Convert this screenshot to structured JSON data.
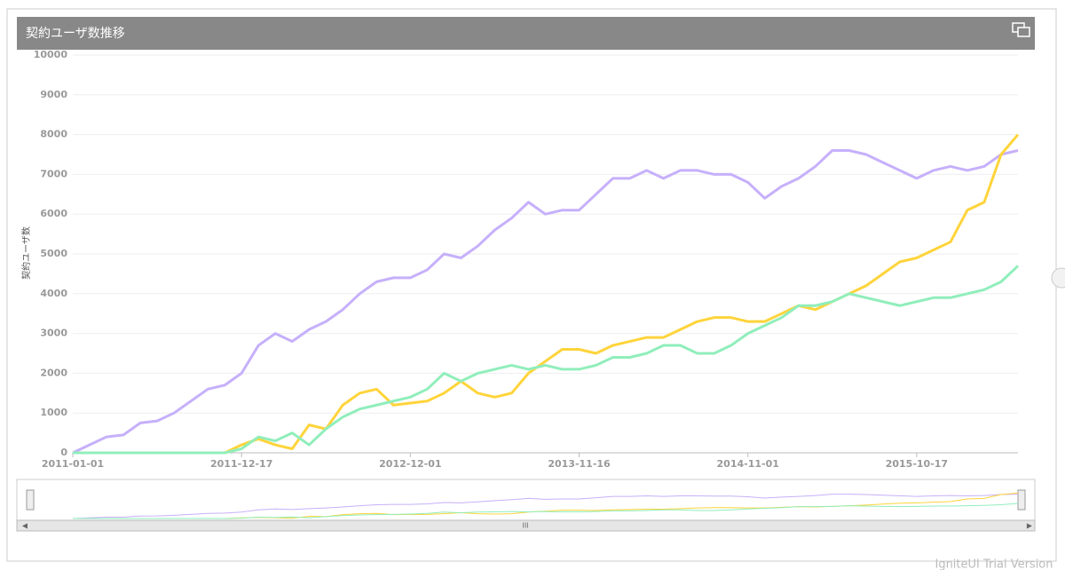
{
  "chart_data": {
    "type": "line",
    "title": "契約ユーザ数推移",
    "y_label": "契約ユーザ数",
    "footer": "IgniteUI Trial Version",
    "categories": [
      "2011-01-01",
      null,
      null,
      null,
      null,
      null,
      null,
      null,
      null,
      null,
      "2011-12-17",
      null,
      null,
      null,
      null,
      null,
      null,
      null,
      null,
      null,
      "2012-12-01",
      null,
      null,
      null,
      null,
      null,
      null,
      null,
      null,
      null,
      "2013-11-16",
      null,
      null,
      null,
      null,
      null,
      null,
      null,
      null,
      null,
      "2014-11-01",
      null,
      null,
      null,
      null,
      null,
      null,
      null,
      null,
      null,
      "2015-10-17",
      null,
      null,
      null,
      null,
      null,
      null
    ],
    "series": [
      {
        "color": "#c6b0fb",
        "values": [
          0,
          200,
          400,
          450,
          750,
          800,
          1000,
          1300,
          1600,
          1700,
          2000,
          2700,
          3000,
          2800,
          3100,
          3300,
          3600,
          4000,
          4300,
          4400,
          4400,
          4600,
          5000,
          4900,
          5200,
          5600,
          5900,
          6300,
          6000,
          6100,
          6100,
          6500,
          6900,
          6900,
          7100,
          6900,
          7100,
          7100,
          7000,
          7000,
          6800,
          6400,
          6700,
          6900,
          7200,
          7600,
          7600,
          7500,
          7300,
          7100,
          6900,
          7100,
          7200,
          7100,
          7200,
          7500,
          7600
        ]
      },
      {
        "color": "#ffd43b",
        "values": [
          0,
          0,
          0,
          0,
          0,
          0,
          0,
          0,
          0,
          0,
          200,
          350,
          200,
          100,
          700,
          600,
          1200,
          1500,
          1600,
          1200,
          1250,
          1300,
          1500,
          1800,
          1500,
          1400,
          1500,
          2000,
          2300,
          2600,
          2600,
          2500,
          2700,
          2800,
          2900,
          2900,
          3100,
          3300,
          3400,
          3400,
          3300,
          3300,
          3500,
          3700,
          3600,
          3800,
          4000,
          4200,
          4500,
          4800,
          4900,
          5100,
          5300,
          6100,
          6300,
          7500,
          8000
        ]
      },
      {
        "color": "#90eebb",
        "values": [
          0,
          0,
          0,
          0,
          0,
          0,
          0,
          0,
          0,
          0,
          100,
          400,
          300,
          500,
          200,
          600,
          900,
          1100,
          1200,
          1300,
          1400,
          1600,
          2000,
          1800,
          2000,
          2100,
          2200,
          2100,
          2200,
          2100,
          2100,
          2200,
          2400,
          2400,
          2500,
          2700,
          2700,
          2500,
          2500,
          2700,
          3000,
          3200,
          3400,
          3700,
          3700,
          3800,
          4000,
          3900,
          3800,
          3700,
          3800,
          3900,
          3900,
          4000,
          4100,
          4300,
          4700
        ]
      }
    ],
    "ylim": [
      0,
      10000
    ],
    "yticks": [
      0,
      1000,
      2000,
      3000,
      4000,
      5000,
      6000,
      7000,
      8000,
      9000,
      10000
    ],
    "grid": true
  }
}
